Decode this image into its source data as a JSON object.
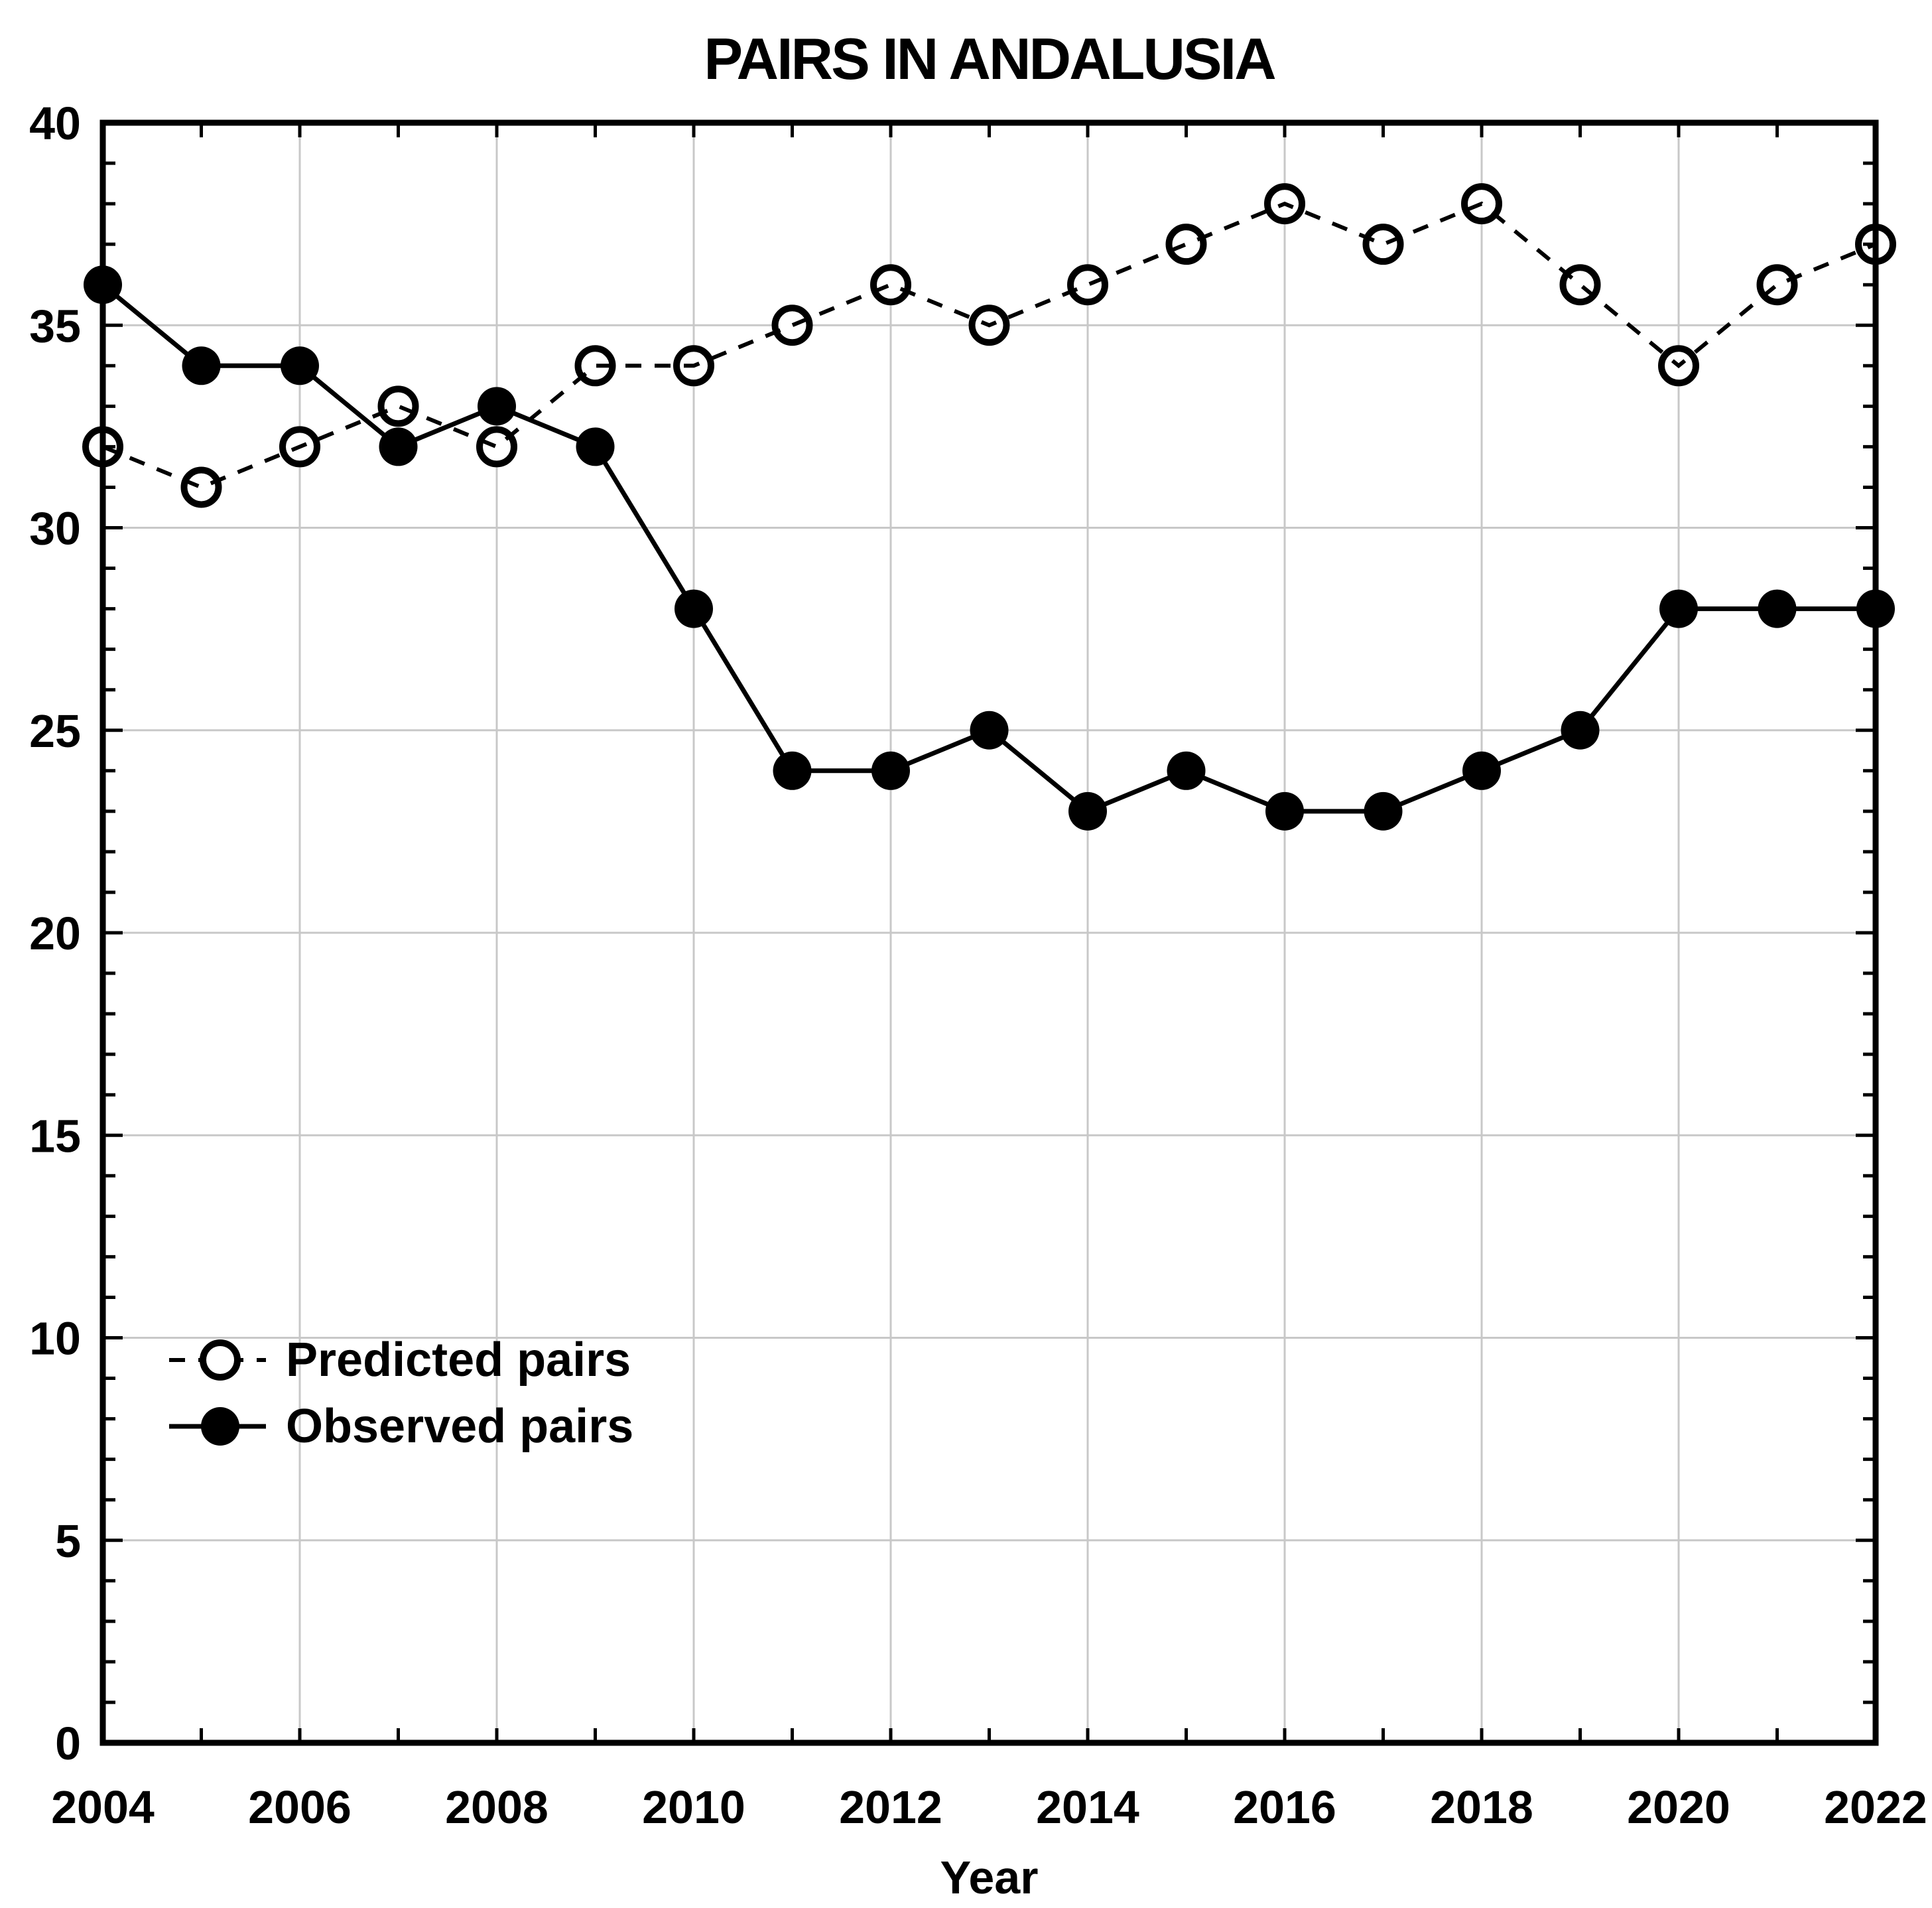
{
  "title": "PAIRS IN ANDALUSIA",
  "chart_data": {
    "type": "line",
    "title": "PAIRS IN ANDALUSIA",
    "xlabel": "Year",
    "ylabel": "",
    "xlim": [
      2004,
      2022
    ],
    "ylim": [
      0,
      40
    ],
    "grid": true,
    "legend_position": "inside-left",
    "x": [
      2004,
      2005,
      2006,
      2007,
      2008,
      2009,
      2010,
      2011,
      2012,
      2013,
      2014,
      2015,
      2016,
      2017,
      2018,
      2019,
      2020,
      2021,
      2022
    ],
    "x_tick_labels": [
      "2004",
      "2006",
      "2008",
      "2010",
      "2012",
      "2014",
      "2016",
      "2018",
      "2020",
      "2022"
    ],
    "y_tick_labels": [
      "0",
      "5",
      "10",
      "15",
      "20",
      "25",
      "30",
      "35",
      "40"
    ],
    "series": [
      {
        "name": "Predicted pairs",
        "marker": "open-circle",
        "line_style": "dashed",
        "values": [
          32,
          31,
          32,
          33,
          32,
          34,
          34,
          35,
          36,
          35,
          36,
          37,
          38,
          37,
          38,
          36,
          34,
          36,
          37
        ]
      },
      {
        "name": "Observed pairs",
        "marker": "filled-circle",
        "line_style": "solid",
        "values": [
          36,
          34,
          34,
          32,
          33,
          32,
          28,
          24,
          24,
          25,
          23,
          24,
          23,
          23,
          24,
          25,
          28,
          28,
          28
        ]
      }
    ],
    "colors": {
      "foreground": "#000000",
      "grid": "#c8c8c8",
      "background": "#ffffff"
    }
  }
}
